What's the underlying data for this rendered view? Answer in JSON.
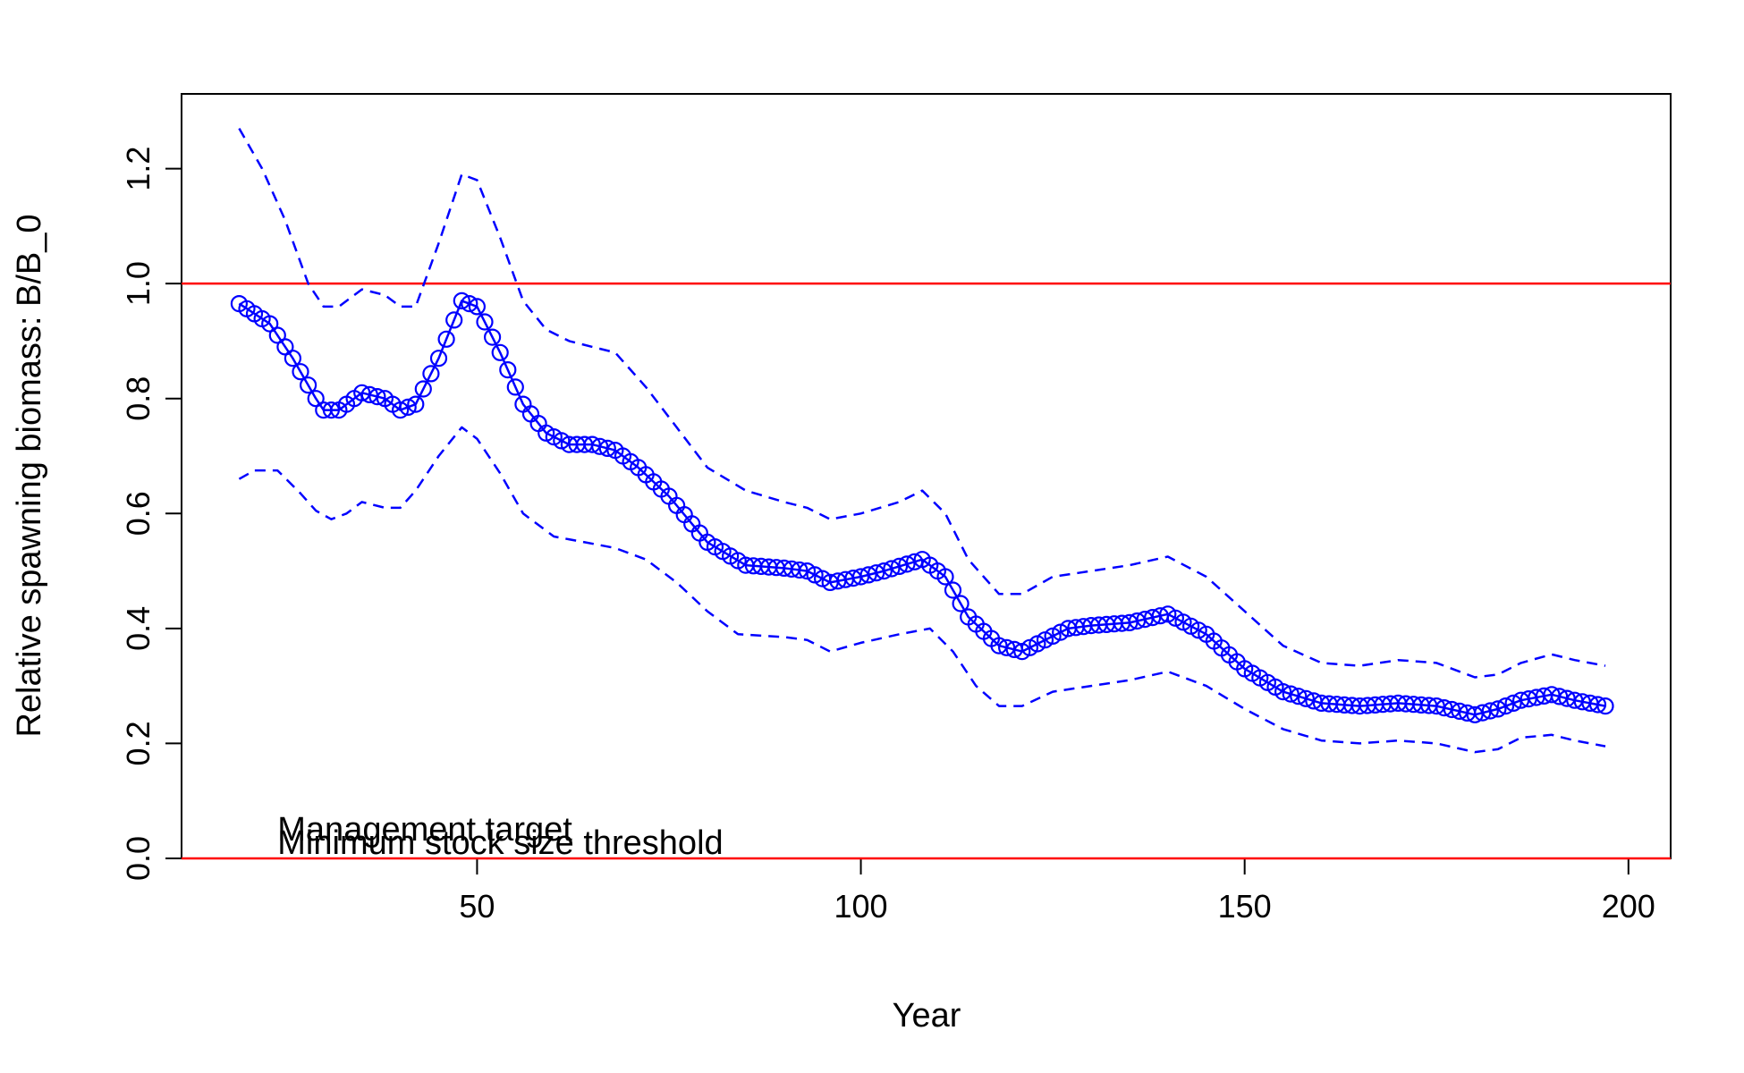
{
  "chart_data": {
    "type": "line",
    "title": "",
    "xlabel": "Year",
    "ylabel": "Relative spawning biomass: B/B_0",
    "xlim": [
      11.5,
      205.5
    ],
    "ylim": [
      0.0,
      1.33
    ],
    "x_ticks": [
      50,
      100,
      150,
      200
    ],
    "y_ticks": [
      0.0,
      0.2,
      0.4,
      0.6,
      0.8,
      1.0,
      1.2
    ],
    "x_tick_labels": [
      "50",
      "100",
      "150",
      "200"
    ],
    "y_tick_labels": [
      "0.0",
      "0.2",
      "0.4",
      "0.6",
      "0.8",
      "1.0",
      "1.2"
    ],
    "grid": false,
    "series": [
      {
        "role": "estimate",
        "color": "#0000ff",
        "style": "circles-with-line",
        "x": [
          19,
          23,
          26,
          29,
          30,
          32,
          35,
          38,
          40,
          42,
          45,
          48,
          50,
          53,
          56,
          59,
          62,
          65,
          68,
          71,
          75,
          80,
          85,
          90,
          93,
          96,
          100,
          103,
          108,
          111,
          114,
          118,
          121,
          124,
          127,
          130,
          135,
          140,
          145,
          150,
          155,
          160,
          165,
          170,
          175,
          180,
          183,
          186,
          190,
          193,
          197
        ],
        "values": [
          0.965,
          0.93,
          0.87,
          0.8,
          0.78,
          0.78,
          0.81,
          0.8,
          0.78,
          0.79,
          0.87,
          0.97,
          0.96,
          0.88,
          0.79,
          0.74,
          0.72,
          0.72,
          0.71,
          0.68,
          0.63,
          0.55,
          0.51,
          0.505,
          0.5,
          0.48,
          0.49,
          0.5,
          0.52,
          0.49,
          0.42,
          0.37,
          0.36,
          0.38,
          0.4,
          0.405,
          0.41,
          0.425,
          0.39,
          0.33,
          0.29,
          0.27,
          0.265,
          0.27,
          0.265,
          0.25,
          0.26,
          0.275,
          0.285,
          0.275,
          0.265
        ]
      },
      {
        "role": "upper-interval",
        "color": "#0000ff",
        "style": "dashed",
        "x": [
          19,
          22,
          25,
          28,
          30,
          32,
          35,
          38,
          40,
          42,
          45,
          48,
          50,
          53,
          56,
          59,
          62,
          65,
          68,
          72,
          76,
          80,
          85,
          90,
          93,
          96,
          100,
          105,
          108,
          111,
          114,
          118,
          121,
          125,
          130,
          135,
          140,
          145,
          150,
          155,
          160,
          165,
          170,
          175,
          180,
          183,
          186,
          190,
          193,
          197
        ],
        "values": [
          1.27,
          1.2,
          1.11,
          1.0,
          0.96,
          0.96,
          0.99,
          0.98,
          0.96,
          0.96,
          1.07,
          1.19,
          1.18,
          1.08,
          0.97,
          0.92,
          0.9,
          0.89,
          0.88,
          0.82,
          0.75,
          0.68,
          0.64,
          0.62,
          0.61,
          0.59,
          0.6,
          0.62,
          0.64,
          0.6,
          0.52,
          0.46,
          0.46,
          0.49,
          0.5,
          0.51,
          0.525,
          0.49,
          0.43,
          0.37,
          0.34,
          0.335,
          0.345,
          0.34,
          0.315,
          0.32,
          0.34,
          0.355,
          0.345,
          0.335
        ]
      },
      {
        "role": "lower-interval",
        "color": "#0000ff",
        "style": "dashed",
        "x": [
          19,
          21,
          24,
          27,
          29,
          31,
          33,
          35,
          38,
          40,
          42,
          45,
          48,
          50,
          53,
          56,
          60,
          64,
          68,
          72,
          76,
          80,
          84,
          90,
          93,
          96,
          100,
          105,
          109,
          112,
          115,
          118,
          121,
          125,
          130,
          135,
          140,
          145,
          150,
          155,
          160,
          165,
          170,
          175,
          180,
          183,
          186,
          190,
          193,
          197
        ],
        "values": [
          0.66,
          0.675,
          0.675,
          0.635,
          0.605,
          0.59,
          0.6,
          0.62,
          0.61,
          0.61,
          0.64,
          0.7,
          0.75,
          0.73,
          0.67,
          0.6,
          0.56,
          0.55,
          0.54,
          0.52,
          0.48,
          0.43,
          0.39,
          0.385,
          0.38,
          0.36,
          0.375,
          0.39,
          0.4,
          0.36,
          0.3,
          0.265,
          0.265,
          0.29,
          0.3,
          0.31,
          0.325,
          0.3,
          0.26,
          0.225,
          0.205,
          0.2,
          0.205,
          0.2,
          0.185,
          0.19,
          0.21,
          0.215,
          0.205,
          0.195
        ]
      }
    ],
    "reference_lines": [
      {
        "y": 1.0,
        "color": "#ff0000"
      },
      {
        "y": 0.0,
        "color": "#ff0000"
      }
    ],
    "annotations": [
      {
        "text": "Management target",
        "x": 24,
        "y": 0.025
      },
      {
        "text": "Minimum stock size threshold",
        "x": 24,
        "y": 0.02
      }
    ]
  }
}
